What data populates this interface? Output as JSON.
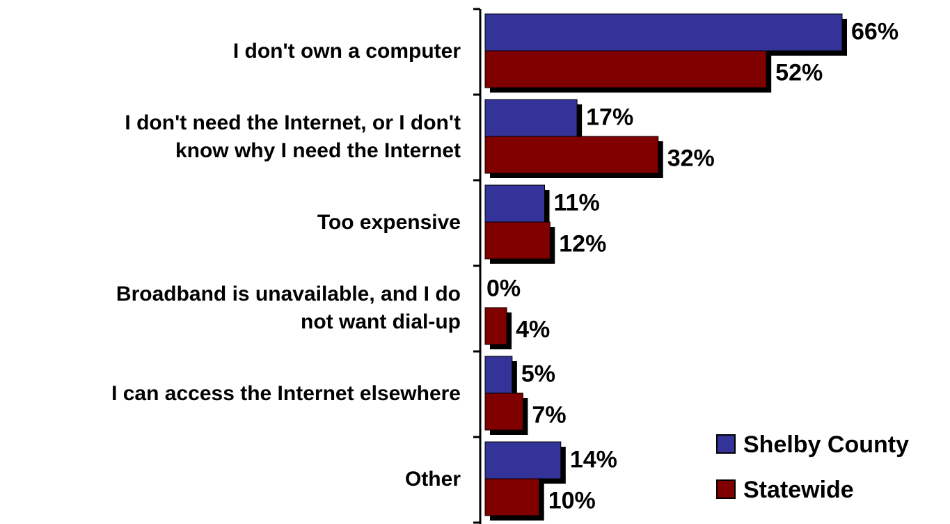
{
  "chart_data": {
    "type": "bar",
    "orientation": "horizontal",
    "categories": [
      [
        "I don't own a computer"
      ],
      [
        "I don't need the Internet, or I don't",
        "know why I need the Internet"
      ],
      [
        "Too expensive"
      ],
      [
        "Broadband is unavailable, and I do",
        "not want dial-up"
      ],
      [
        "I can access the Internet elsewhere"
      ],
      [
        "Other"
      ]
    ],
    "series": [
      {
        "name": "Shelby County",
        "color": "#333399",
        "values": [
          66,
          17,
          11,
          0,
          5,
          14
        ],
        "labels": [
          "66%",
          "17%",
          "11%",
          "0%",
          "5%",
          "14%"
        ]
      },
      {
        "name": "Statewide",
        "color": "#800000",
        "values": [
          52,
          32,
          12,
          4,
          7,
          10
        ],
        "labels": [
          "52%",
          "32%",
          "12%",
          "4%",
          "7%",
          "10%"
        ]
      }
    ],
    "xlim": [
      0,
      66
    ],
    "grid": false,
    "legend": "bottom-right"
  }
}
